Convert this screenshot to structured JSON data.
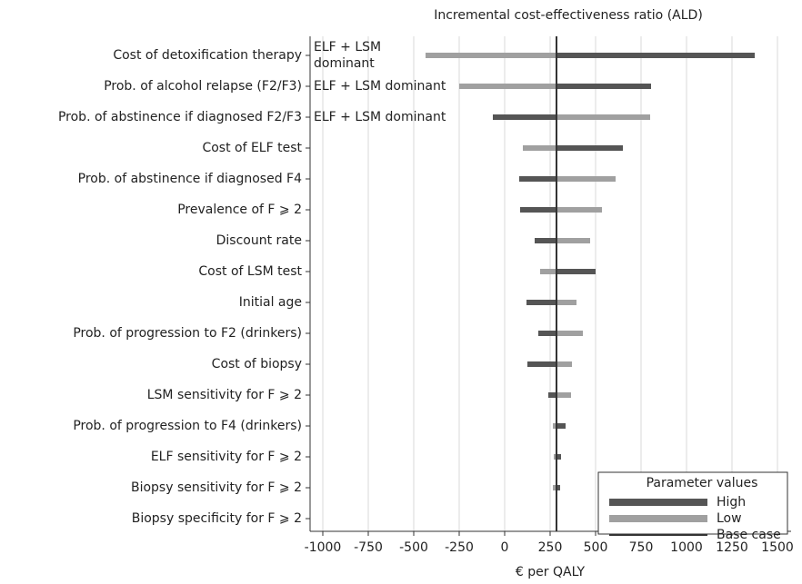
{
  "chart_data": {
    "type": "tornado",
    "title": "Incremental cost-effectiveness ratio (ALD)",
    "x_label": "€ per QALY",
    "categories": [
      "Cost of detoxification therapy",
      "Prob. of alcohol relapse (F2/F3)",
      "Prob. of abstinence if diagnosed F2/F3",
      "Cost of ELF test",
      "Prob. of abstinence if diagnosed F4",
      "Prevalence of F ⩾ 2",
      "Discount rate",
      "Cost of LSM test",
      "Initial age",
      "Prob. of progression to F2 (drinkers)",
      "Cost of biopsy",
      "LSM sensitivity for F ⩾ 2",
      "Prob. of progression to F4 (drinkers)",
      "ELF sensitivity for F ⩾ 2",
      "Biopsy sensitivity for F ⩾ 2",
      "Biopsy specificity for F ⩾ 2"
    ],
    "series": [
      {
        "name": "High",
        "color": "#555555",
        "values": [
          1375,
          805,
          -65,
          650,
          80,
          85,
          165,
          500,
          120,
          185,
          125,
          240,
          335,
          310,
          305,
          290
        ]
      },
      {
        "name": "Low",
        "color": "#a0a0a0",
        "values": [
          -435,
          -250,
          800,
          100,
          610,
          535,
          470,
          195,
          395,
          430,
          370,
          365,
          265,
          270,
          265,
          280
        ]
      }
    ],
    "base_case": {
      "name": "Base case",
      "value": 285,
      "color": "#333333"
    },
    "annotations": [
      {
        "row": 0,
        "lines": [
          "ELF + LSM",
          "dominant"
        ]
      },
      {
        "row": 1,
        "lines": [
          "ELF + LSM dominant"
        ]
      },
      {
        "row": 2,
        "lines": [
          "ELF + LSM dominant"
        ]
      }
    ],
    "legend_title": "Parameter values",
    "legend_position": "lower right",
    "xlim": [
      -1070,
      1575
    ],
    "xticks": [
      -1000,
      -750,
      -500,
      -250,
      0,
      250,
      500,
      750,
      1000,
      1250,
      1500
    ],
    "grid": true
  }
}
